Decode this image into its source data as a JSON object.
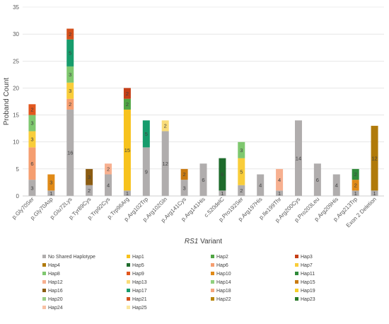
{
  "chart_data": {
    "type": "bar",
    "stacked": true,
    "ylabel": "Proband Count",
    "xlabel_italic": "RS1",
    "xlabel_rest": " Variant",
    "ylim": [
      0,
      35
    ],
    "yticks": [
      0,
      5,
      10,
      15,
      20,
      25,
      30,
      35
    ],
    "grid": true,
    "legend_position": "bottom",
    "categories": [
      "p.Gly70Ser",
      "p.Gly70Asp",
      "p.Glu72Lys",
      "p.Tyr89Cys",
      "p.Trp92Cys",
      "p.Trp96Arg",
      "p.Arg102Trp",
      "p.Arg102Gln",
      "p.Arg141Cys",
      "p.Arg141His",
      "c.520delC",
      "p.Pro192Ser",
      "p.Arg197His",
      "p.Ile199Thr",
      "p.Arg200Cys",
      "p.Pro203Leu",
      "p.Arg209His",
      "p.Arg213Trp",
      "Exon 2 Deletion"
    ],
    "series": [
      {
        "name": "No Shared Haplotype",
        "color": "#b0adad",
        "values": [
          3,
          1,
          16,
          2,
          4,
          1,
          9,
          12,
          3,
          6,
          1,
          2,
          4,
          1,
          14,
          6,
          4,
          1,
          1
        ]
      },
      {
        "name": "Hap1",
        "color": "#f7c21c",
        "values": [
          0,
          0,
          0,
          0,
          0,
          15,
          0,
          0,
          0,
          0,
          0,
          0,
          0,
          0,
          0,
          0,
          0,
          0,
          0
        ]
      },
      {
        "name": "Hap2",
        "color": "#51a544",
        "values": [
          0,
          0,
          0,
          0,
          0,
          2,
          0,
          0,
          0,
          0,
          0,
          0,
          0,
          0,
          0,
          0,
          0,
          0,
          0
        ]
      },
      {
        "name": "Hap3",
        "color": "#c63f17",
        "values": [
          0,
          0,
          0,
          0,
          0,
          2,
          0,
          0,
          0,
          0,
          0,
          0,
          0,
          0,
          0,
          0,
          0,
          0,
          0
        ]
      },
      {
        "name": "Hap4",
        "color": "#b07a0a",
        "values": [
          0,
          0,
          0,
          0,
          0,
          0,
          0,
          0,
          0,
          0,
          0,
          0,
          0,
          0,
          0,
          0,
          0,
          0,
          12
        ]
      },
      {
        "name": "Hap5",
        "color": "#1e6b2c",
        "values": [
          0,
          0,
          0,
          0,
          0,
          0,
          0,
          0,
          0,
          0,
          6,
          0,
          0,
          0,
          0,
          0,
          0,
          0,
          0
        ]
      },
      {
        "name": "Hap6",
        "color": "#f59e70",
        "values": [
          6,
          0,
          2,
          0,
          0,
          0,
          0,
          0,
          0,
          0,
          0,
          0,
          0,
          0,
          0,
          0,
          0,
          0,
          0
        ]
      },
      {
        "name": "Hap7",
        "color": "#f9cd3a",
        "values": [
          3,
          0,
          3,
          0,
          0,
          0,
          0,
          0,
          0,
          0,
          0,
          5,
          0,
          0,
          0,
          0,
          0,
          0,
          0
        ]
      },
      {
        "name": "Hap8",
        "color": "#7fc86f",
        "values": [
          3,
          0,
          3,
          0,
          0,
          0,
          0,
          0,
          0,
          0,
          0,
          3,
          0,
          0,
          0,
          0,
          0,
          0,
          0
        ]
      },
      {
        "name": "Hap9",
        "color": "#e2571e",
        "values": [
          2,
          0,
          0,
          0,
          0,
          0,
          0,
          0,
          0,
          0,
          0,
          0,
          0,
          0,
          0,
          0,
          0,
          0,
          0
        ]
      },
      {
        "name": "Hap10",
        "color": "#e08a18",
        "values": [
          0,
          3,
          0,
          0,
          0,
          0,
          0,
          0,
          0,
          0,
          0,
          0,
          0,
          0,
          0,
          0,
          0,
          2,
          0
        ]
      },
      {
        "name": "Hap11",
        "color": "#2f8a3a",
        "values": [
          0,
          0,
          0,
          0,
          0,
          0,
          0,
          0,
          0,
          0,
          0,
          0,
          0,
          0,
          0,
          0,
          0,
          2,
          0
        ]
      },
      {
        "name": "Hap12",
        "color": "#f7b090",
        "values": [
          0,
          0,
          0,
          0,
          2,
          0,
          0,
          0,
          0,
          0,
          0,
          0,
          0,
          4,
          0,
          0,
          0,
          0,
          0
        ]
      },
      {
        "name": "Hap13",
        "color": "#f9dc78",
        "values": [
          0,
          0,
          0,
          0,
          0,
          0,
          0,
          2,
          0,
          0,
          0,
          0,
          0,
          0,
          0,
          0,
          0,
          0,
          0
        ]
      },
      {
        "name": "Hap14",
        "color": "#8fd07e",
        "values": [
          0,
          0,
          0,
          0,
          0,
          0,
          0,
          0,
          0,
          0,
          0,
          0,
          0,
          0,
          0,
          0,
          0,
          0,
          0
        ]
      },
      {
        "name": "Hap15",
        "color": "#c97a10",
        "values": [
          0,
          0,
          0,
          0,
          0,
          0,
          0,
          0,
          2,
          0,
          0,
          0,
          0,
          0,
          0,
          0,
          0,
          0,
          0
        ]
      },
      {
        "name": "Hap16",
        "color": "#8b5c12",
        "values": [
          0,
          0,
          0,
          3,
          0,
          0,
          0,
          0,
          0,
          0,
          0,
          0,
          0,
          0,
          0,
          0,
          0,
          0,
          0
        ]
      },
      {
        "name": "Hap17",
        "color": "#169c6c",
        "values": [
          0,
          0,
          5,
          0,
          0,
          0,
          5,
          0,
          0,
          0,
          0,
          0,
          0,
          0,
          0,
          0,
          0,
          0,
          0
        ]
      },
      {
        "name": "Hap18",
        "color": "#f4a57e",
        "values": [
          0,
          0,
          0,
          0,
          0,
          0,
          0,
          0,
          0,
          0,
          0,
          0,
          0,
          0,
          0,
          0,
          0,
          0,
          0
        ]
      },
      {
        "name": "Hap19",
        "color": "#f6ce2a",
        "values": [
          0,
          0,
          0,
          0,
          0,
          0,
          0,
          0,
          0,
          0,
          0,
          0,
          0,
          0,
          0,
          0,
          0,
          0,
          0
        ]
      },
      {
        "name": "Hap20",
        "color": "#98cf85",
        "values": [
          0,
          0,
          0,
          0,
          0,
          0,
          0,
          0,
          0,
          0,
          0,
          0,
          0,
          0,
          0,
          0,
          0,
          0,
          0
        ]
      },
      {
        "name": "Hap21",
        "color": "#d4501c",
        "values": [
          0,
          0,
          2,
          0,
          0,
          0,
          0,
          0,
          0,
          0,
          0,
          0,
          0,
          0,
          0,
          0,
          0,
          0,
          0
        ]
      },
      {
        "name": "Hap22",
        "color": "#b8860b",
        "values": [
          0,
          0,
          0,
          0,
          0,
          0,
          0,
          0,
          0,
          0,
          0,
          0,
          0,
          0,
          0,
          0,
          0,
          0,
          0
        ]
      },
      {
        "name": "Hap23",
        "color": "#2a7a2a",
        "values": [
          0,
          0,
          0,
          0,
          0,
          0,
          0,
          0,
          0,
          0,
          0,
          0,
          0,
          0,
          0,
          0,
          0,
          0,
          0
        ]
      },
      {
        "name": "Hap24",
        "color": "#f8c0a4",
        "values": [
          0,
          0,
          0,
          0,
          0,
          0,
          0,
          0,
          0,
          0,
          0,
          0,
          0,
          0,
          0,
          0,
          0,
          0,
          0
        ]
      },
      {
        "name": "Hap25",
        "color": "#fbe7a0",
        "values": [
          0,
          0,
          0,
          0,
          0,
          0,
          0,
          0,
          0,
          0,
          0,
          0,
          0,
          0,
          0,
          0,
          0,
          0,
          0
        ]
      }
    ]
  }
}
